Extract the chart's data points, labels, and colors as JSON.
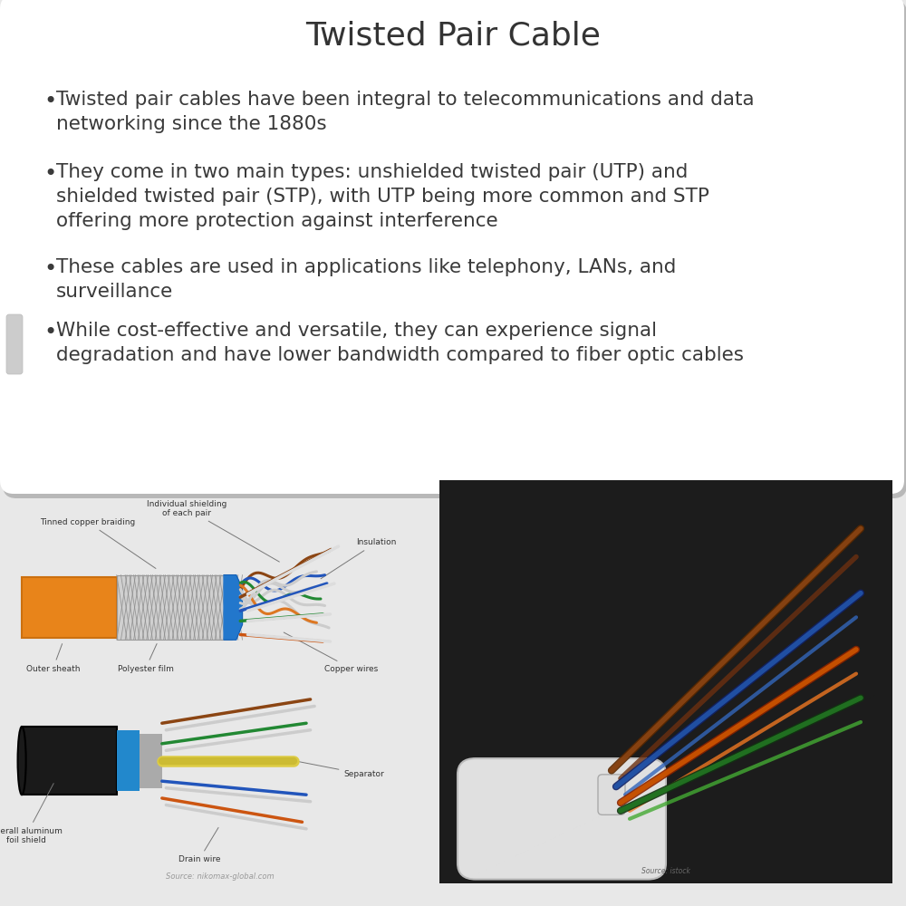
{
  "title": "Twisted Pair Cable",
  "title_fontsize": 26,
  "title_color": "#333333",
  "bullet_texts": [
    "Twisted pair cables have been integral to telecommunications and data\nnetworking since the 1880s",
    "They come in two main types: unshielded twisted pair (UTP) and\nshielded twisted pair (STP), with UTP being more common and STP\noffering more protection against interference",
    "These cables are used in applications like telephony, LANs, and\nsurveillance",
    "While cost-effective and versatile, they can experience signal\ndegradation and have lower bandwidth compared to fiber optic cables"
  ],
  "bullet_fontsize": 15.5,
  "bullet_color": "#3a3a3a",
  "bg_color": "#e8e8e8",
  "card_color": "#ffffff",
  "source_text": "Source: nikomax-global.com"
}
